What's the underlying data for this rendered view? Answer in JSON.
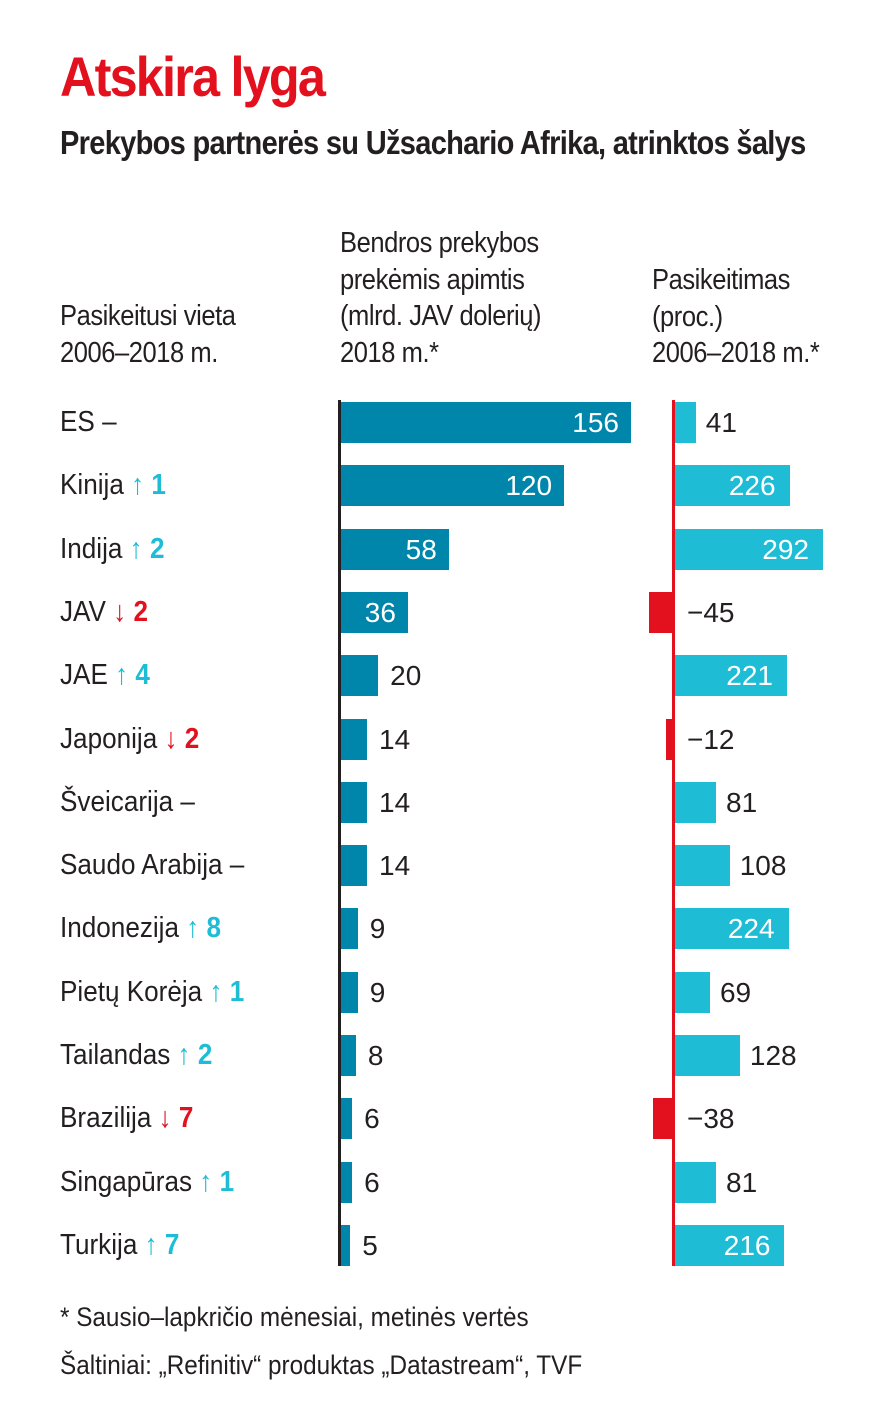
{
  "title": "Atskira lyga",
  "subtitle": "Prekybos partnerės su Užsachario Afrika, atrinktos šalys",
  "headers": {
    "rank_change": "Pasikeitusi vieta\n2006–2018 m.",
    "trade_volume": "Bendros prekybos\nprekėmis apimtis\n(mlrd. JAV dolerių)\n2018 m.*",
    "change_pct": "Pasikeitimas\n(proc.)\n2006–2018 m.*"
  },
  "footnote": "* Sausio–lapkričio mėnesiai, metinės vertės",
  "source": "Šaltiniai: „Refinitiv“ produktas „Datastream“, TVF",
  "colors": {
    "title": "#e3101d",
    "trade_bar": "#0085ab",
    "change_positive": "#1fbcd6",
    "change_negative": "#e3101d",
    "rank_up": "#1fbcd6",
    "rank_down": "#e3101d"
  },
  "chart_data": {
    "type": "bar",
    "title": "Atskira lyga",
    "subtitle": "Prekybos partnerės su Užsachario Afrika, atrinktos šalys",
    "categories": [
      "ES",
      "Kinija",
      "Indija",
      "JAV",
      "JAE",
      "Japonija",
      "Šveicarija",
      "Saudo Arabija",
      "Indonezija",
      "Pietų Korėja",
      "Tailandas",
      "Brazilija",
      "Singapūras",
      "Turkija"
    ],
    "rank_change": [
      {
        "dir": "same",
        "arrow": "–",
        "value": ""
      },
      {
        "dir": "up",
        "arrow": "↑",
        "value": "1"
      },
      {
        "dir": "up",
        "arrow": "↑",
        "value": "2"
      },
      {
        "dir": "down",
        "arrow": "↓",
        "value": "2"
      },
      {
        "dir": "up",
        "arrow": "↑",
        "value": "4"
      },
      {
        "dir": "down",
        "arrow": "↓",
        "value": "2"
      },
      {
        "dir": "same",
        "arrow": "–",
        "value": ""
      },
      {
        "dir": "same",
        "arrow": "–",
        "value": ""
      },
      {
        "dir": "up",
        "arrow": "↑",
        "value": "8"
      },
      {
        "dir": "up",
        "arrow": "↑",
        "value": "1"
      },
      {
        "dir": "up",
        "arrow": "↑",
        "value": "2"
      },
      {
        "dir": "down",
        "arrow": "↓",
        "value": "7"
      },
      {
        "dir": "up",
        "arrow": "↑",
        "value": "1"
      },
      {
        "dir": "up",
        "arrow": "↑",
        "value": "7"
      }
    ],
    "series": [
      {
        "name": "Bendros prekybos prekėmis apimtis (mlrd. JAV dolerių) 2018 m.*",
        "values": [
          156,
          120,
          58,
          36,
          20,
          14,
          14,
          14,
          9,
          9,
          8,
          6,
          6,
          5
        ],
        "max": 156
      },
      {
        "name": "Pasikeitimas (proc.) 2006–2018 m.*",
        "values": [
          41,
          226,
          292,
          -45,
          221,
          -12,
          81,
          108,
          224,
          69,
          128,
          -38,
          81,
          216
        ],
        "max": 292
      }
    ]
  }
}
